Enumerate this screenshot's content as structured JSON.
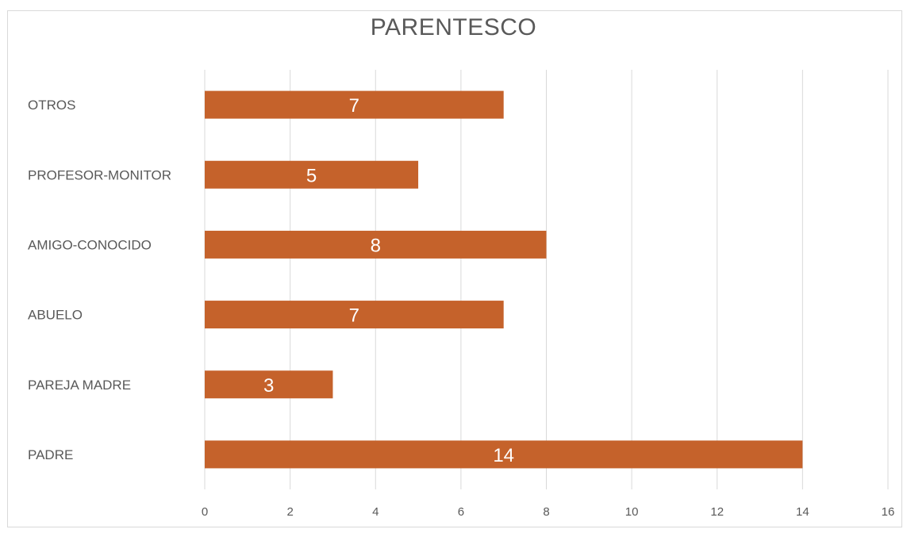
{
  "chart_data": {
    "type": "bar",
    "orientation": "horizontal",
    "title": "PARENTESCO",
    "categories": [
      "OTROS",
      "PROFESOR-MONITOR",
      "AMIGO-CONOCIDO",
      "ABUELO",
      "PAREJA MADRE",
      "PADRE"
    ],
    "values": [
      7,
      5,
      8,
      7,
      3,
      14
    ],
    "data_labels": [
      "7",
      "5",
      "8",
      "7",
      "3",
      "14"
    ],
    "xlabel": "",
    "ylabel": "",
    "xlim": [
      0,
      16
    ],
    "ticks": [
      0,
      2,
      4,
      6,
      8,
      10,
      12,
      14,
      16
    ],
    "grid": true,
    "legend": "none",
    "bar_color": "#c5622b",
    "grid_color": "#d9d9d9",
    "text_color": "#595959"
  }
}
